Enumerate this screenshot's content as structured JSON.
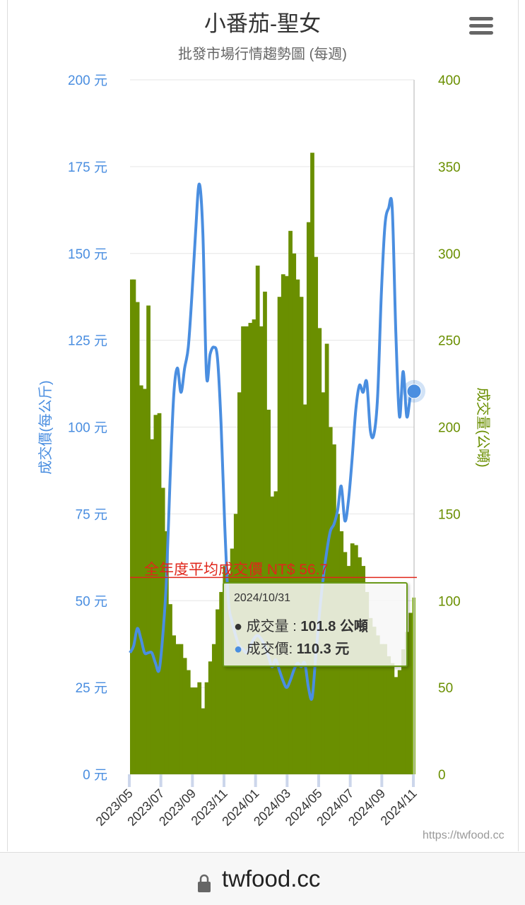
{
  "header": {
    "title": "小番茄-聖女",
    "subtitle": "批發市場行情趨勢圖 (每週)",
    "menu_icon": "hamburger-icon"
  },
  "footer": {
    "url": "twfood.cc",
    "lock_icon": "lock-icon"
  },
  "credit": "https://twfood.cc",
  "tooltip": {
    "date": "2024/10/31",
    "volume_label": "成交量 : ",
    "volume_value": "101.8 公噸",
    "price_label": "成交價: ",
    "price_value": "110.3 元"
  },
  "average_line": {
    "label": "全年度平均成交價 NT$ 56.7",
    "value": 56.7,
    "color": "#e0261b"
  },
  "chart_data": {
    "type": "bar+line",
    "title": "小番茄-聖女",
    "subtitle": "批發市場行情趨勢圖 (每週)",
    "xlabel": "",
    "x_tick_labels": [
      "2023/05",
      "2023/07",
      "2023/09",
      "2023/11",
      "2024/01",
      "2024/03",
      "2024/05",
      "2024/07",
      "2024/09",
      "2024/11"
    ],
    "y_left": {
      "label": "成交價(每公斤)",
      "range": [
        0,
        200
      ],
      "ticks": [
        "0 元",
        "25 元",
        "50 元",
        "75 元",
        "100 元",
        "125 元",
        "150 元",
        "175 元",
        "200 元"
      ],
      "color": "#4a8ee0"
    },
    "y_right": {
      "label": "成交量(公噸)",
      "range": [
        0,
        400
      ],
      "ticks": [
        "0",
        "50",
        "100",
        "150",
        "200",
        "250",
        "300",
        "350",
        "400"
      ],
      "color": "#6a8f00"
    },
    "grid": true,
    "dates": [
      "2023/05/04",
      "2023/05/11",
      "2023/05/18",
      "2023/05/25",
      "2023/06/01",
      "2023/06/08",
      "2023/06/15",
      "2023/06/22",
      "2023/06/29",
      "2023/07/06",
      "2023/07/13",
      "2023/07/20",
      "2023/07/27",
      "2023/08/03",
      "2023/08/10",
      "2023/08/17",
      "2023/08/24",
      "2023/08/31",
      "2023/09/07",
      "2023/09/14",
      "2023/09/21",
      "2023/09/28",
      "2023/10/05",
      "2023/10/12",
      "2023/10/19",
      "2023/10/26",
      "2023/11/02",
      "2023/11/09",
      "2023/11/16",
      "2023/11/23",
      "2023/11/30",
      "2023/12/07",
      "2023/12/14",
      "2023/12/21",
      "2023/12/28",
      "2024/01/04",
      "2024/01/11",
      "2024/01/18",
      "2024/01/25",
      "2024/02/01",
      "2024/02/08",
      "2024/02/15",
      "2024/02/22",
      "2024/02/29",
      "2024/03/07",
      "2024/03/14",
      "2024/03/21",
      "2024/03/28",
      "2024/04/04",
      "2024/04/11",
      "2024/04/18",
      "2024/04/25",
      "2024/05/02",
      "2024/05/09",
      "2024/05/16",
      "2024/05/23",
      "2024/05/30",
      "2024/06/06",
      "2024/06/13",
      "2024/06/20",
      "2024/06/27",
      "2024/07/04",
      "2024/07/11",
      "2024/07/18",
      "2024/07/25",
      "2024/08/01",
      "2024/08/08",
      "2024/08/15",
      "2024/08/22",
      "2024/08/29",
      "2024/09/05",
      "2024/09/12",
      "2024/09/19",
      "2024/09/26",
      "2024/10/03",
      "2024/10/10",
      "2024/10/17",
      "2024/10/24",
      "2024/10/31"
    ],
    "series": [
      {
        "name": "成交量",
        "type": "bar",
        "axis": "right",
        "unit": "公噸",
        "color": "#6a8f00",
        "values": [
          285,
          285,
          272,
          224,
          222,
          270,
          193,
          207,
          208,
          165,
          140,
          98,
          80,
          75,
          75,
          67,
          60,
          50,
          50,
          53,
          38,
          53,
          65,
          75,
          95,
          105,
          120,
          115,
          130,
          150,
          220,
          258,
          258,
          260,
          262,
          293,
          258,
          278,
          210,
          160,
          163,
          275,
          288,
          287,
          313,
          300,
          285,
          275,
          213,
          318,
          358,
          298,
          257,
          220,
          248,
          200,
          190,
          150,
          140,
          128,
          120,
          133,
          132,
          125,
          120,
          105,
          90,
          85,
          80,
          75,
          75,
          68,
          64,
          56,
          60,
          72,
          82,
          93,
          101.8
        ]
      },
      {
        "name": "成交價",
        "type": "line",
        "axis": "left",
        "unit": "元",
        "color": "#4a8ee0",
        "values": [
          35,
          37,
          42,
          39,
          35,
          35,
          35,
          32,
          30,
          40,
          56,
          85,
          109,
          117,
          110,
          117,
          123,
          138,
          156,
          170,
          156,
          115,
          121,
          123,
          120,
          101,
          72,
          50,
          44,
          40,
          37,
          36,
          35,
          37,
          39,
          40,
          39,
          37,
          34,
          31,
          33,
          30,
          27,
          25,
          27,
          30,
          32,
          31,
          32,
          25,
          22,
          34,
          46,
          56,
          64,
          70,
          72,
          76,
          83,
          73,
          79,
          91,
          105,
          112,
          110,
          113,
          99,
          98,
          109,
          138,
          158,
          163,
          163,
          127,
          103,
          116,
          103,
          109,
          110.3
        ]
      }
    ]
  }
}
